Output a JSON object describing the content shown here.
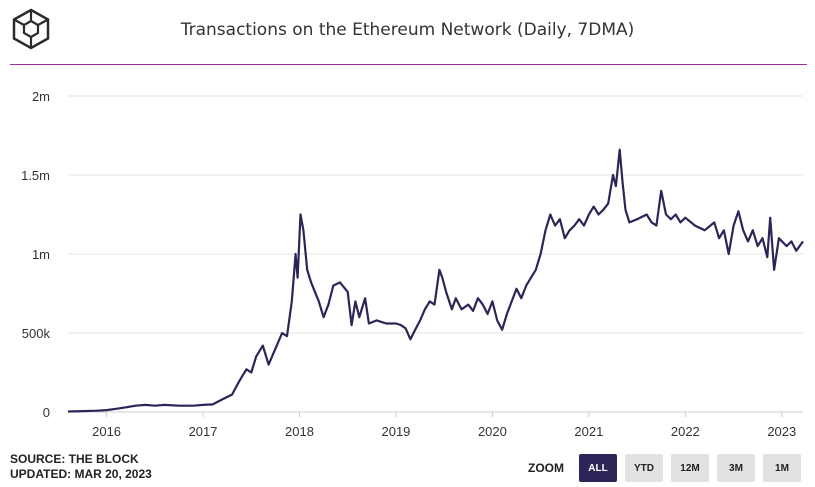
{
  "header": {
    "title": "Transactions on the Ethereum Network (Daily, 7DMA)"
  },
  "footer": {
    "source": "SOURCE: THE BLOCK",
    "updated": "UPDATED: MAR 20, 2023"
  },
  "zoom": {
    "label": "ZOOM",
    "buttons": [
      {
        "label": "ALL",
        "active": true
      },
      {
        "label": "YTD",
        "active": false
      },
      {
        "label": "12M",
        "active": false
      },
      {
        "label": "3M",
        "active": false
      },
      {
        "label": "1M",
        "active": false
      }
    ]
  },
  "colors": {
    "line": "#2b2657",
    "accent_rule": "#a02ca0",
    "grid": "#e6e6e6",
    "active_button": "#2b2657"
  },
  "chart_data": {
    "type": "line",
    "title": "Transactions on the Ethereum Network (Daily, 7DMA)",
    "xlabel": "",
    "ylabel": "",
    "x_range": [
      2015.6,
      2023.22
    ],
    "ylim": [
      0,
      2000000
    ],
    "y_ticks": [
      0,
      500000,
      1000000,
      1500000,
      2000000
    ],
    "y_tick_labels": [
      "0",
      "500k",
      "1m",
      "1.5m",
      "2m"
    ],
    "x_ticks": [
      2016,
      2017,
      2018,
      2019,
      2020,
      2021,
      2022,
      2023
    ],
    "x_tick_labels": [
      "2016",
      "2017",
      "2018",
      "2019",
      "2020",
      "2021",
      "2022",
      "2023"
    ],
    "grid": true,
    "legend": "none",
    "series": [
      {
        "values": [
          [
            2015.6,
            3000
          ],
          [
            2015.75,
            6000
          ],
          [
            2015.9,
            8000
          ],
          [
            2016.0,
            12000
          ],
          [
            2016.1,
            20000
          ],
          [
            2016.2,
            30000
          ],
          [
            2016.3,
            40000
          ],
          [
            2016.4,
            45000
          ],
          [
            2016.5,
            40000
          ],
          [
            2016.6,
            45000
          ],
          [
            2016.75,
            40000
          ],
          [
            2016.9,
            40000
          ],
          [
            2017.0,
            45000
          ],
          [
            2017.1,
            48000
          ],
          [
            2017.2,
            80000
          ],
          [
            2017.3,
            110000
          ],
          [
            2017.38,
            200000
          ],
          [
            2017.45,
            270000
          ],
          [
            2017.5,
            250000
          ],
          [
            2017.55,
            350000
          ],
          [
            2017.62,
            420000
          ],
          [
            2017.68,
            300000
          ],
          [
            2017.75,
            400000
          ],
          [
            2017.82,
            500000
          ],
          [
            2017.87,
            480000
          ],
          [
            2017.92,
            700000
          ],
          [
            2017.96,
            1000000
          ],
          [
            2017.98,
            850000
          ],
          [
            2018.01,
            1250000
          ],
          [
            2018.04,
            1150000
          ],
          [
            2018.08,
            900000
          ],
          [
            2018.12,
            820000
          ],
          [
            2018.2,
            700000
          ],
          [
            2018.25,
            600000
          ],
          [
            2018.3,
            680000
          ],
          [
            2018.35,
            800000
          ],
          [
            2018.42,
            820000
          ],
          [
            2018.5,
            760000
          ],
          [
            2018.54,
            550000
          ],
          [
            2018.58,
            700000
          ],
          [
            2018.62,
            600000
          ],
          [
            2018.68,
            720000
          ],
          [
            2018.72,
            560000
          ],
          [
            2018.8,
            580000
          ],
          [
            2018.9,
            560000
          ],
          [
            2019.0,
            560000
          ],
          [
            2019.05,
            550000
          ],
          [
            2019.1,
            530000
          ],
          [
            2019.15,
            460000
          ],
          [
            2019.2,
            520000
          ],
          [
            2019.25,
            580000
          ],
          [
            2019.3,
            650000
          ],
          [
            2019.35,
            700000
          ],
          [
            2019.4,
            680000
          ],
          [
            2019.45,
            900000
          ],
          [
            2019.48,
            850000
          ],
          [
            2019.52,
            760000
          ],
          [
            2019.58,
            650000
          ],
          [
            2019.62,
            720000
          ],
          [
            2019.68,
            650000
          ],
          [
            2019.75,
            680000
          ],
          [
            2019.8,
            640000
          ],
          [
            2019.85,
            720000
          ],
          [
            2019.9,
            680000
          ],
          [
            2019.95,
            620000
          ],
          [
            2020.0,
            700000
          ],
          [
            2020.05,
            580000
          ],
          [
            2020.1,
            520000
          ],
          [
            2020.15,
            620000
          ],
          [
            2020.2,
            700000
          ],
          [
            2020.25,
            780000
          ],
          [
            2020.3,
            720000
          ],
          [
            2020.35,
            800000
          ],
          [
            2020.4,
            850000
          ],
          [
            2020.45,
            900000
          ],
          [
            2020.5,
            1000000
          ],
          [
            2020.55,
            1150000
          ],
          [
            2020.6,
            1250000
          ],
          [
            2020.65,
            1180000
          ],
          [
            2020.7,
            1220000
          ],
          [
            2020.75,
            1100000
          ],
          [
            2020.8,
            1150000
          ],
          [
            2020.85,
            1180000
          ],
          [
            2020.9,
            1220000
          ],
          [
            2020.95,
            1180000
          ],
          [
            2021.0,
            1250000
          ],
          [
            2021.05,
            1300000
          ],
          [
            2021.1,
            1250000
          ],
          [
            2021.15,
            1280000
          ],
          [
            2021.2,
            1320000
          ],
          [
            2021.25,
            1500000
          ],
          [
            2021.28,
            1430000
          ],
          [
            2021.32,
            1660000
          ],
          [
            2021.35,
            1450000
          ],
          [
            2021.38,
            1280000
          ],
          [
            2021.42,
            1200000
          ],
          [
            2021.5,
            1220000
          ],
          [
            2021.6,
            1250000
          ],
          [
            2021.65,
            1200000
          ],
          [
            2021.7,
            1180000
          ],
          [
            2021.75,
            1400000
          ],
          [
            2021.8,
            1250000
          ],
          [
            2021.85,
            1220000
          ],
          [
            2021.9,
            1250000
          ],
          [
            2021.95,
            1200000
          ],
          [
            2022.0,
            1230000
          ],
          [
            2022.1,
            1180000
          ],
          [
            2022.2,
            1150000
          ],
          [
            2022.3,
            1200000
          ],
          [
            2022.35,
            1100000
          ],
          [
            2022.4,
            1150000
          ],
          [
            2022.45,
            1000000
          ],
          [
            2022.5,
            1180000
          ],
          [
            2022.55,
            1270000
          ],
          [
            2022.6,
            1150000
          ],
          [
            2022.65,
            1080000
          ],
          [
            2022.7,
            1150000
          ],
          [
            2022.75,
            1050000
          ],
          [
            2022.8,
            1100000
          ],
          [
            2022.85,
            980000
          ],
          [
            2022.88,
            1230000
          ],
          [
            2022.92,
            900000
          ],
          [
            2022.97,
            1100000
          ],
          [
            2023.05,
            1050000
          ],
          [
            2023.1,
            1080000
          ],
          [
            2023.15,
            1020000
          ],
          [
            2023.22,
            1080000
          ]
        ]
      }
    ]
  }
}
